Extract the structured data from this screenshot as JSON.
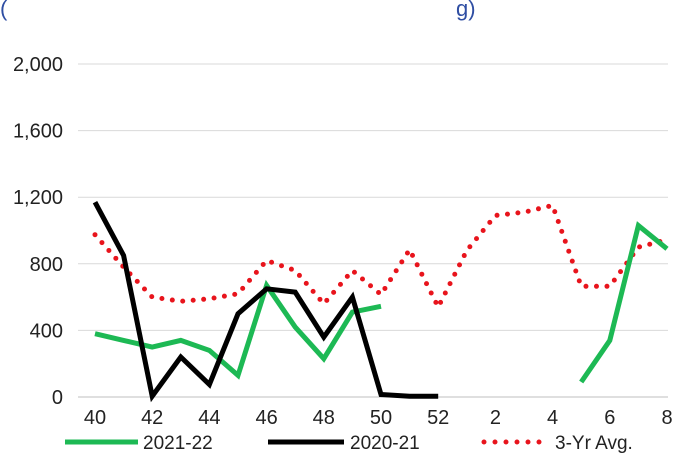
{
  "chart_data": {
    "type": "line",
    "title_fragment": "(",
    "title_fragment_end": "g)",
    "categories": [
      "40",
      "41",
      "42",
      "43",
      "44",
      "45",
      "46",
      "47",
      "48",
      "49",
      "50",
      "51",
      "52",
      "1",
      "2",
      "3",
      "4",
      "5",
      "6",
      "7",
      "8"
    ],
    "x_tick_labels": [
      "40",
      "",
      "42",
      "",
      "44",
      "",
      "46",
      "",
      "48",
      "",
      "50",
      "",
      "52",
      "",
      "2",
      "",
      "4",
      "",
      "6",
      "",
      "8"
    ],
    "ylim": [
      0,
      2000
    ],
    "y_ticks": [
      0,
      400,
      800,
      1200,
      1600,
      2000
    ],
    "y_tick_labels": [
      "0",
      "400",
      "800",
      "1,200",
      "1,600",
      "2,000"
    ],
    "grid": true,
    "legend_position": "bottom",
    "series": [
      {
        "name": "2021-22",
        "color": "#1db954",
        "style": "solid",
        "values": [
          380,
          340,
          300,
          340,
          280,
          130,
          670,
          420,
          230,
          510,
          545,
          null,
          null,
          null,
          null,
          null,
          null,
          90,
          340,
          1030,
          890
        ]
      },
      {
        "name": "2020-21",
        "color": "#000000",
        "style": "solid",
        "values": [
          1170,
          850,
          5,
          240,
          75,
          500,
          650,
          630,
          360,
          600,
          15,
          5,
          5,
          null,
          null,
          null,
          null,
          null,
          null,
          null,
          null
        ]
      },
      {
        "name": "3-Yr Avg.",
        "color": "#e8141c",
        "style": "dotted",
        "values": [
          975,
          780,
          600,
          575,
          590,
          620,
          820,
          760,
          560,
          760,
          615,
          885,
          540,
          880,
          1090,
          1110,
          1150,
          665,
          665,
          900,
          945
        ]
      }
    ]
  }
}
